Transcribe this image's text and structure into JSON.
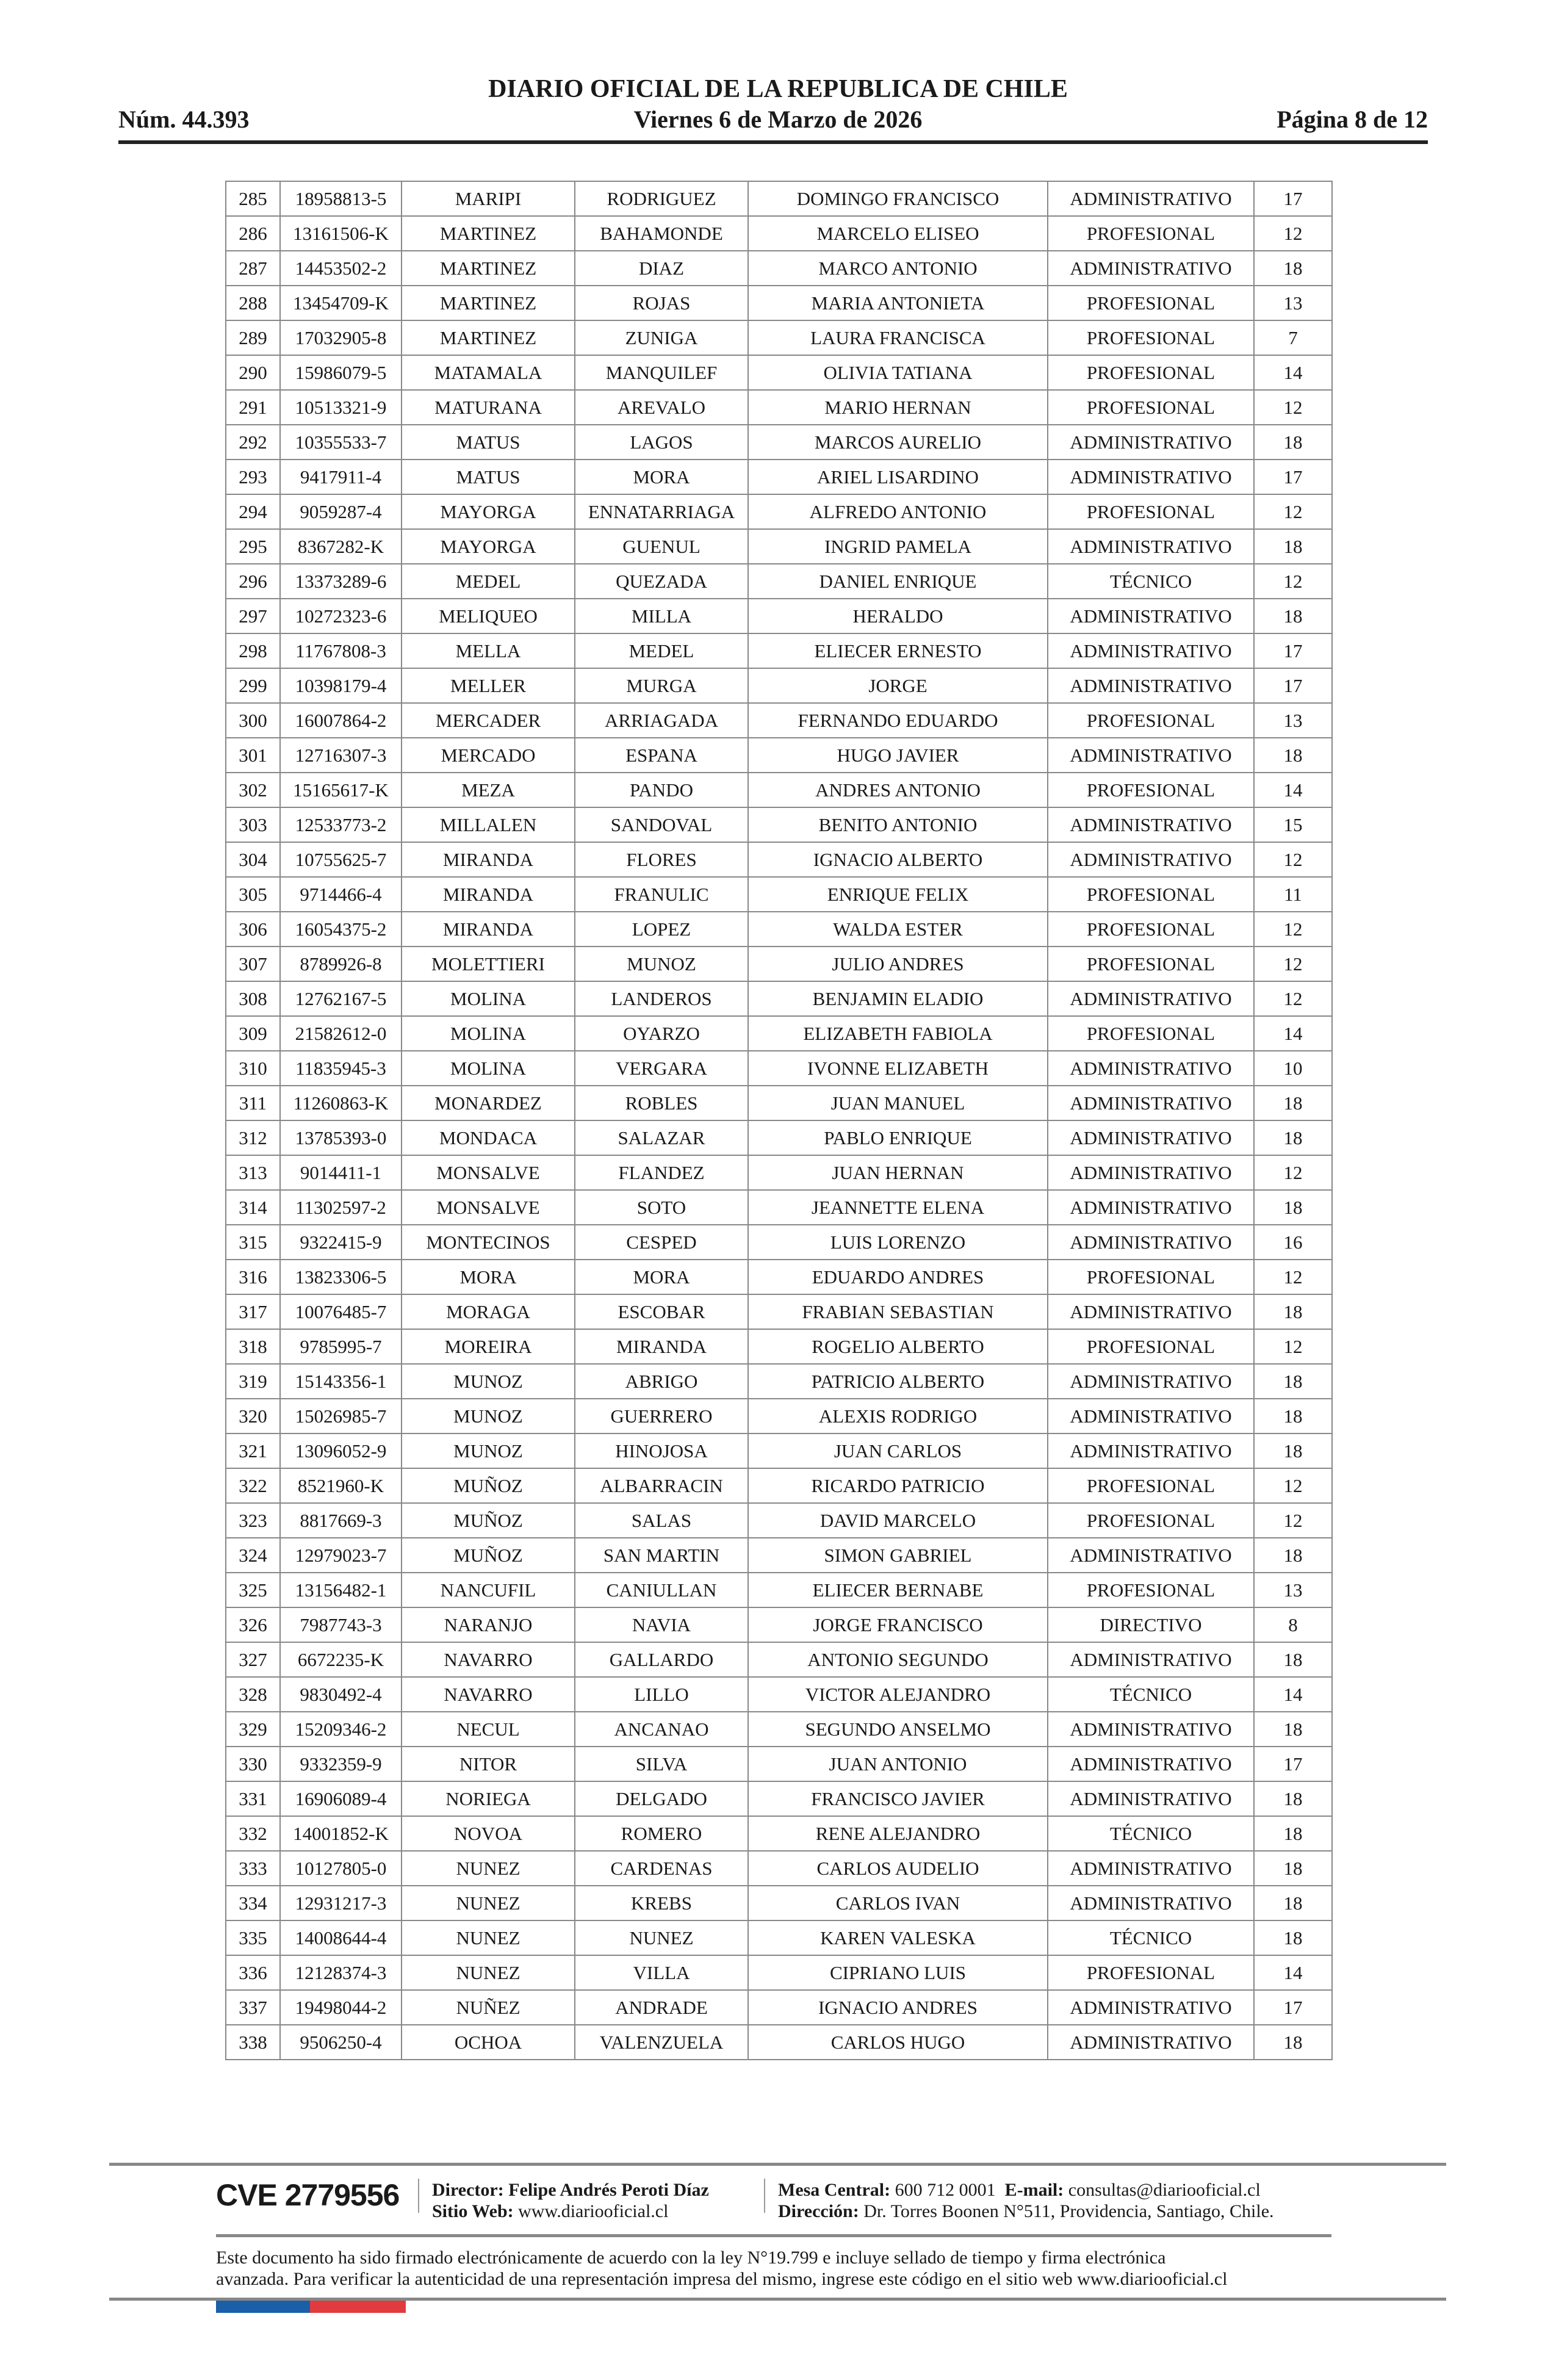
{
  "header": {
    "title": "DIARIO OFICIAL DE LA REPUBLICA DE CHILE",
    "issue_number": "Núm. 44.393",
    "date": "Viernes 6 de Marzo de 2026",
    "page": "Página 8 de 12"
  },
  "table": {
    "rows": [
      [
        "285",
        "18958813-5",
        "MARIPI",
        "RODRIGUEZ",
        "DOMINGO FRANCISCO",
        "ADMINISTRATIVO",
        "17"
      ],
      [
        "286",
        "13161506-K",
        "MARTINEZ",
        "BAHAMONDE",
        "MARCELO ELISEO",
        "PROFESIONAL",
        "12"
      ],
      [
        "287",
        "14453502-2",
        "MARTINEZ",
        "DIAZ",
        "MARCO ANTONIO",
        "ADMINISTRATIVO",
        "18"
      ],
      [
        "288",
        "13454709-K",
        "MARTINEZ",
        "ROJAS",
        "MARIA ANTONIETA",
        "PROFESIONAL",
        "13"
      ],
      [
        "289",
        "17032905-8",
        "MARTINEZ",
        "ZUNIGA",
        "LAURA FRANCISCA",
        "PROFESIONAL",
        "7"
      ],
      [
        "290",
        "15986079-5",
        "MATAMALA",
        "MANQUILEF",
        "OLIVIA TATIANA",
        "PROFESIONAL",
        "14"
      ],
      [
        "291",
        "10513321-9",
        "MATURANA",
        "AREVALO",
        "MARIO HERNAN",
        "PROFESIONAL",
        "12"
      ],
      [
        "292",
        "10355533-7",
        "MATUS",
        "LAGOS",
        "MARCOS AURELIO",
        "ADMINISTRATIVO",
        "18"
      ],
      [
        "293",
        "9417911-4",
        "MATUS",
        "MORA",
        "ARIEL LISARDINO",
        "ADMINISTRATIVO",
        "17"
      ],
      [
        "294",
        "9059287-4",
        "MAYORGA",
        "ENNATARRIAGA",
        "ALFREDO ANTONIO",
        "PROFESIONAL",
        "12"
      ],
      [
        "295",
        "8367282-K",
        "MAYORGA",
        "GUENUL",
        "INGRID PAMELA",
        "ADMINISTRATIVO",
        "18"
      ],
      [
        "296",
        "13373289-6",
        "MEDEL",
        "QUEZADA",
        "DANIEL ENRIQUE",
        "TÉCNICO",
        "12"
      ],
      [
        "297",
        "10272323-6",
        "MELIQUEO",
        "MILLA",
        "HERALDO",
        "ADMINISTRATIVO",
        "18"
      ],
      [
        "298",
        "11767808-3",
        "MELLA",
        "MEDEL",
        "ELIECER ERNESTO",
        "ADMINISTRATIVO",
        "17"
      ],
      [
        "299",
        "10398179-4",
        "MELLER",
        "MURGA",
        "JORGE",
        "ADMINISTRATIVO",
        "17"
      ],
      [
        "300",
        "16007864-2",
        "MERCADER",
        "ARRIAGADA",
        "FERNANDO EDUARDO",
        "PROFESIONAL",
        "13"
      ],
      [
        "301",
        "12716307-3",
        "MERCADO",
        "ESPANA",
        "HUGO JAVIER",
        "ADMINISTRATIVO",
        "18"
      ],
      [
        "302",
        "15165617-K",
        "MEZA",
        "PANDO",
        "ANDRES ANTONIO",
        "PROFESIONAL",
        "14"
      ],
      [
        "303",
        "12533773-2",
        "MILLALEN",
        "SANDOVAL",
        "BENITO ANTONIO",
        "ADMINISTRATIVO",
        "15"
      ],
      [
        "304",
        "10755625-7",
        "MIRANDA",
        "FLORES",
        "IGNACIO ALBERTO",
        "ADMINISTRATIVO",
        "12"
      ],
      [
        "305",
        "9714466-4",
        "MIRANDA",
        "FRANULIC",
        "ENRIQUE FELIX",
        "PROFESIONAL",
        "11"
      ],
      [
        "306",
        "16054375-2",
        "MIRANDA",
        "LOPEZ",
        "WALDA ESTER",
        "PROFESIONAL",
        "12"
      ],
      [
        "307",
        "8789926-8",
        "MOLETTIERI",
        "MUNOZ",
        "JULIO ANDRES",
        "PROFESIONAL",
        "12"
      ],
      [
        "308",
        "12762167-5",
        "MOLINA",
        "LANDEROS",
        "BENJAMIN ELADIO",
        "ADMINISTRATIVO",
        "12"
      ],
      [
        "309",
        "21582612-0",
        "MOLINA",
        "OYARZO",
        "ELIZABETH FABIOLA",
        "PROFESIONAL",
        "14"
      ],
      [
        "310",
        "11835945-3",
        "MOLINA",
        "VERGARA",
        "IVONNE ELIZABETH",
        "ADMINISTRATIVO",
        "10"
      ],
      [
        "311",
        "11260863-K",
        "MONARDEZ",
        "ROBLES",
        "JUAN MANUEL",
        "ADMINISTRATIVO",
        "18"
      ],
      [
        "312",
        "13785393-0",
        "MONDACA",
        "SALAZAR",
        "PABLO ENRIQUE",
        "ADMINISTRATIVO",
        "18"
      ],
      [
        "313",
        "9014411-1",
        "MONSALVE",
        "FLANDEZ",
        "JUAN HERNAN",
        "ADMINISTRATIVO",
        "12"
      ],
      [
        "314",
        "11302597-2",
        "MONSALVE",
        "SOTO",
        "JEANNETTE ELENA",
        "ADMINISTRATIVO",
        "18"
      ],
      [
        "315",
        "9322415-9",
        "MONTECINOS",
        "CESPED",
        "LUIS LORENZO",
        "ADMINISTRATIVO",
        "16"
      ],
      [
        "316",
        "13823306-5",
        "MORA",
        "MORA",
        "EDUARDO ANDRES",
        "PROFESIONAL",
        "12"
      ],
      [
        "317",
        "10076485-7",
        "MORAGA",
        "ESCOBAR",
        "FRABIAN SEBASTIAN",
        "ADMINISTRATIVO",
        "18"
      ],
      [
        "318",
        "9785995-7",
        "MOREIRA",
        "MIRANDA",
        "ROGELIO ALBERTO",
        "PROFESIONAL",
        "12"
      ],
      [
        "319",
        "15143356-1",
        "MUNOZ",
        "ABRIGO",
        "PATRICIO ALBERTO",
        "ADMINISTRATIVO",
        "18"
      ],
      [
        "320",
        "15026985-7",
        "MUNOZ",
        "GUERRERO",
        "ALEXIS RODRIGO",
        "ADMINISTRATIVO",
        "18"
      ],
      [
        "321",
        "13096052-9",
        "MUNOZ",
        "HINOJOSA",
        "JUAN CARLOS",
        "ADMINISTRATIVO",
        "18"
      ],
      [
        "322",
        "8521960-K",
        "MUÑOZ",
        "ALBARRACIN",
        "RICARDO PATRICIO",
        "PROFESIONAL",
        "12"
      ],
      [
        "323",
        "8817669-3",
        "MUÑOZ",
        "SALAS",
        "DAVID MARCELO",
        "PROFESIONAL",
        "12"
      ],
      [
        "324",
        "12979023-7",
        "MUÑOZ",
        "SAN MARTIN",
        "SIMON GABRIEL",
        "ADMINISTRATIVO",
        "18"
      ],
      [
        "325",
        "13156482-1",
        "NANCUFIL",
        "CANIULLAN",
        "ELIECER BERNABE",
        "PROFESIONAL",
        "13"
      ],
      [
        "326",
        "7987743-3",
        "NARANJO",
        "NAVIA",
        "JORGE FRANCISCO",
        "DIRECTIVO",
        "8"
      ],
      [
        "327",
        "6672235-K",
        "NAVARRO",
        "GALLARDO",
        "ANTONIO SEGUNDO",
        "ADMINISTRATIVO",
        "18"
      ],
      [
        "328",
        "9830492-4",
        "NAVARRO",
        "LILLO",
        "VICTOR ALEJANDRO",
        "TÉCNICO",
        "14"
      ],
      [
        "329",
        "15209346-2",
        "NECUL",
        "ANCANAO",
        "SEGUNDO ANSELMO",
        "ADMINISTRATIVO",
        "18"
      ],
      [
        "330",
        "9332359-9",
        "NITOR",
        "SILVA",
        "JUAN ANTONIO",
        "ADMINISTRATIVO",
        "17"
      ],
      [
        "331",
        "16906089-4",
        "NORIEGA",
        "DELGADO",
        "FRANCISCO JAVIER",
        "ADMINISTRATIVO",
        "18"
      ],
      [
        "332",
        "14001852-K",
        "NOVOA",
        "ROMERO",
        "RENE ALEJANDRO",
        "TÉCNICO",
        "18"
      ],
      [
        "333",
        "10127805-0",
        "NUNEZ",
        "CARDENAS",
        "CARLOS AUDELIO",
        "ADMINISTRATIVO",
        "18"
      ],
      [
        "334",
        "12931217-3",
        "NUNEZ",
        "KREBS",
        "CARLOS IVAN",
        "ADMINISTRATIVO",
        "18"
      ],
      [
        "335",
        "14008644-4",
        "NUNEZ",
        "NUNEZ",
        "KAREN VALESKA",
        "TÉCNICO",
        "18"
      ],
      [
        "336",
        "12128374-3",
        "NUNEZ",
        "VILLA",
        "CIPRIANO LUIS",
        "PROFESIONAL",
        "14"
      ],
      [
        "337",
        "19498044-2",
        "NUÑEZ",
        "ANDRADE",
        "IGNACIO ANDRES",
        "ADMINISTRATIVO",
        "17"
      ],
      [
        "338",
        "9506250-4",
        "OCHOA",
        "VALENZUELA",
        "CARLOS HUGO",
        "ADMINISTRATIVO",
        "18"
      ]
    ]
  },
  "footer": {
    "cve": "CVE 2779556",
    "director_label": "Director:",
    "director": "Felipe Andrés Peroti Díaz",
    "website_label": "Sitio Web:",
    "website": "www.diariooficial.cl",
    "phone_label": "Mesa Central:",
    "phone": "600 712 0001",
    "email_label": "E-mail:",
    "email": "consultas@diariooficial.cl",
    "address_label": "Dirección:",
    "address": "Dr. Torres Boonen N°511, Providencia, Santiago, Chile.",
    "notice_line1": "Este documento ha sido firmado electrónicamente de acuerdo con la ley N°19.799 e incluye sellado de tiempo y firma electrónica",
    "notice_line2": "avanzada. Para verificar la autenticidad de una representación impresa del mismo, ingrese este código en el sitio web www.diariooficial.cl",
    "colors": {
      "flag_blue": "#1a5fa8",
      "flag_red": "#e23b3f"
    }
  }
}
